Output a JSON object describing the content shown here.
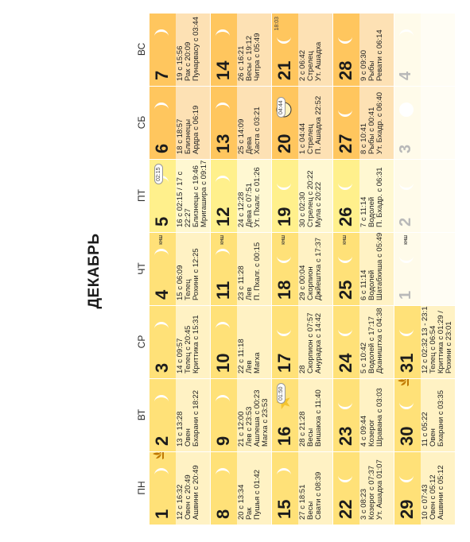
{
  "title": "ДЕКАБРЬ",
  "weekdays": [
    "ПН",
    "ВТ",
    "СР",
    "ЧТ",
    "ПТ",
    "СБ",
    "ВС"
  ],
  "colors": {
    "weekday_band": "#ffe178",
    "weekday_body": "#fff2c4",
    "weekend_band": "#ffc65e",
    "weekend_body": "#fde1b4",
    "friday_band": "#fff08c",
    "friday_body": "#fff8d2",
    "next_month_band": "#fffbea",
    "next_month_body": "#fffdf4",
    "moon": "#ffffff"
  },
  "weeks": [
    [
      {
        "day": "1",
        "lines": [
          "12 с 16:32",
          "Овен с 20:49",
          "Ашвини с 20:49"
        ],
        "moon": "crescent-right",
        "icon": "lotus"
      },
      {
        "day": "2",
        "lines": [
          "13 с 13:28",
          "Овен",
          "Бхарани с 18:22"
        ],
        "moon": "crescent-right"
      },
      {
        "day": "3",
        "lines": [
          "14 с 09:57",
          "Телец с 20:45",
          "Криттика с 15:31"
        ],
        "moon": "crescent-right"
      },
      {
        "day": "4",
        "lines": [
          "15 с 06:09",
          "Телец",
          "Рохини с 12:25"
        ],
        "moon": "crescent-right",
        "tag": "КНШ"
      },
      {
        "day": "5",
        "lines": [
          "16 с 02:15 / 17 с",
          "22:27",
          "Близнецы с 19:46",
          "Мригашира с 09:17"
        ],
        "moon": "crescent-right",
        "badge": "02:15"
      },
      {
        "day": "6",
        "lines": [
          "18 с 18:57",
          "Близнецы",
          "Ардра с 06:19"
        ],
        "moon": "crescent-right"
      },
      {
        "day": "7",
        "lines": [
          "19 с 15:56",
          "Рак с 20:09",
          "Пунарвасу с 03:44"
        ],
        "moon": "crescent-right"
      }
    ],
    [
      {
        "day": "8",
        "lines": [
          "20 с 13:34",
          "Рак",
          "Пушья с 01:42"
        ],
        "moon": "crescent-right"
      },
      {
        "day": "9",
        "lines": [
          "21 с 12:00",
          "Лев с 23:53",
          "Ашлеша с 00:23",
          "Магха с 23:53"
        ],
        "moon": "crescent-right"
      },
      {
        "day": "10",
        "lines": [
          "22 с 11:18",
          "Лев",
          "Магха"
        ],
        "moon": "crescent-right"
      },
      {
        "day": "11",
        "lines": [
          "23 с 11:28",
          "Лев",
          "П. Пхалг. с 00:15"
        ],
        "moon": "crescent-right",
        "tag": "КНШ"
      },
      {
        "day": "12",
        "lines": [
          "24 с 12:28",
          "Дева с 07:51",
          "Ут. Пхалг. с 01:26"
        ],
        "moon": "crescent-right"
      },
      {
        "day": "13",
        "lines": [
          "25 с 14:09",
          "Дева",
          "Хаста с 03:21"
        ],
        "moon": "crescent-right"
      },
      {
        "day": "14",
        "lines": [
          "26 с 16:21",
          "Весы с 19:12",
          "Читра с 05:49"
        ],
        "moon": "crescent-right"
      }
    ],
    [
      {
        "day": "15",
        "lines": [
          "27 с 18:51",
          "Весы",
          "Свати с 08:39"
        ],
        "moon": "crescent-right"
      },
      {
        "day": "16",
        "lines": [
          "28 с 21:28",
          "Весы",
          "Вишакха с 11:40"
        ],
        "moon": "new-moon-star",
        "badge": "01:50"
      },
      {
        "day": "17",
        "lines": [
          "28",
          "Скорпион с 07:57",
          "Анурадха с 14:42"
        ],
        "moon": "crescent-left"
      },
      {
        "day": "18",
        "lines": [
          "29 с 00:04",
          "Скорпион",
          "Джйештха с 17:37"
        ],
        "moon": "crescent-left",
        "tag": "КНШ"
      },
      {
        "day": "19",
        "lines": [
          "30 с 02:30",
          "Стрелец с 20:22",
          "Мула с 20:22"
        ],
        "moon": "crescent-left"
      },
      {
        "day": "20",
        "lines": [
          "1 с 04:44",
          "Стрелец",
          "П. Ашадха 22:52"
        ],
        "moon": "full-badge",
        "badge": "04:44"
      },
      {
        "day": "21",
        "lines": [
          "2 с 06:42",
          "Стрелец",
          "Ут. Ашадха"
        ],
        "moon": "crescent-left",
        "corner": "18:03"
      }
    ],
    [
      {
        "day": "22",
        "lines": [
          "3 с 08:23",
          "Козерог с 07:37",
          "Ут. Ашадха 01:07"
        ],
        "moon": "crescent-left"
      },
      {
        "day": "23",
        "lines": [
          "4 с 09:44",
          "Козерог",
          "Шравана с 03:03"
        ],
        "moon": "crescent-left"
      },
      {
        "day": "24",
        "lines": [
          "5 с 10:42",
          "Водолей с 17:17",
          "Дхаништха с 04:38"
        ],
        "moon": "crescent-left"
      },
      {
        "day": "25",
        "lines": [
          "6 с 11:14",
          "Водолей",
          "Шатабхиша с 05:49"
        ],
        "moon": "crescent-left",
        "tag": "КНШ"
      },
      {
        "day": "26",
        "lines": [
          "7 с 11:14",
          "Водолей",
          "П. Бхадр. с 06:31"
        ],
        "moon": "crescent-left"
      },
      {
        "day": "27",
        "lines": [
          "8 с 10:41",
          "Рыбы с 00:41",
          "Ут. Бхадр. с 06:40"
        ],
        "moon": "crescent-left"
      },
      {
        "day": "28",
        "lines": [
          "9 с 09:30",
          "Рыбы",
          "Ревати с 06:14"
        ],
        "moon": "crescent-left"
      }
    ],
    [
      {
        "day": "29",
        "lines": [
          "10 с 07:43",
          "Овен с 05:12",
          "Ашвини с 05:12"
        ],
        "moon": "crescent-left"
      },
      {
        "day": "30",
        "lines": [
          "11 с 05:22",
          "Овен",
          "Бхарани с 03:35"
        ],
        "moon": "crescent-left",
        "icon": "lotus"
      },
      {
        "day": "31",
        "lines": [
          "12 с 02:32 13 - 23:19",
          "Телец с 06:54",
          "Криттика с 01:29 /",
          "Рохини с 23:01"
        ],
        "moon": "crescent-left"
      },
      {
        "ghost": "1",
        "moon": "crescent-left",
        "tag": "КНШ"
      },
      {
        "ghost": "2",
        "moon": "crescent-left"
      },
      {
        "ghost": "3",
        "moon": "full"
      },
      {
        "ghost": "4",
        "moon": "crescent-right"
      }
    ]
  ]
}
